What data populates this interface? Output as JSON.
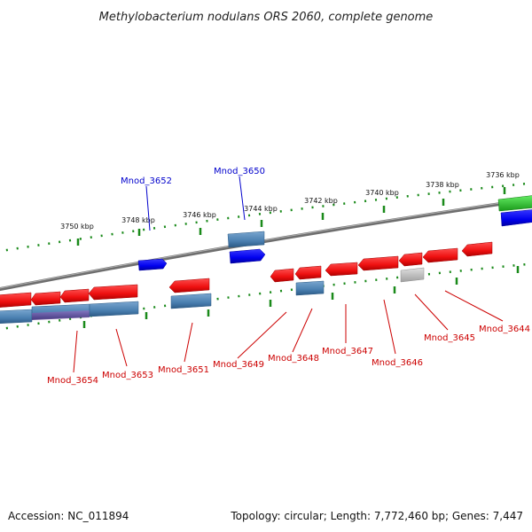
{
  "title": "Methylobacterium nodulans ORS 2060, complete genome",
  "footer": {
    "accession": "Accession: NC_011894",
    "summary": "Topology: circular; Length: 7,772,460 bp; Genes: 7,447"
  },
  "colors": {
    "forward_gene": "#1a1aff",
    "reverse_gene": "#ff2020",
    "steelblue_gene": "#4a7fb0",
    "purple_gene": "#6a4f9a",
    "green_gene": "#2ecc2e",
    "gray_gene": "#c0c0c0",
    "backbone": "#7a7a7a",
    "tick": "#1a8a1a",
    "label_forward": "#0000cc",
    "label_reverse": "#cc0000"
  },
  "ticks": [
    "3750 kbp",
    "3748 kbp",
    "3746 kbp",
    "3744 kbp",
    "3742 kbp",
    "3740 kbp",
    "3738 kbp",
    "3736 kbp"
  ],
  "forward_labels": [
    "Mnod_3652",
    "Mnod_3650"
  ],
  "reverse_labels": [
    "Mnod_3654",
    "Mnod_3653",
    "Mnod_3651",
    "Mnod_3649",
    "Mnod_3648",
    "Mnod_3647",
    "Mnod_3646",
    "Mnod_3645",
    "Mnod_3644"
  ]
}
